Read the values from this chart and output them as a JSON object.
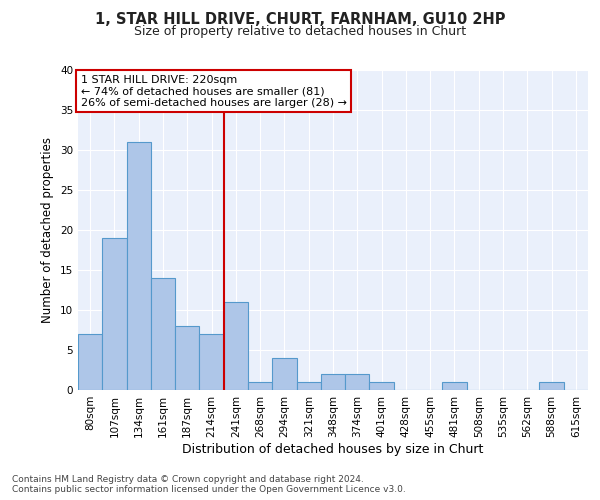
{
  "title": "1, STAR HILL DRIVE, CHURT, FARNHAM, GU10 2HP",
  "subtitle": "Size of property relative to detached houses in Churt",
  "xlabel": "Distribution of detached houses by size in Churt",
  "ylabel": "Number of detached properties",
  "categories": [
    "80sqm",
    "107sqm",
    "134sqm",
    "161sqm",
    "187sqm",
    "214sqm",
    "241sqm",
    "268sqm",
    "294sqm",
    "321sqm",
    "348sqm",
    "374sqm",
    "401sqm",
    "428sqm",
    "455sqm",
    "481sqm",
    "508sqm",
    "535sqm",
    "562sqm",
    "588sqm",
    "615sqm"
  ],
  "values": [
    7,
    19,
    31,
    14,
    8,
    7,
    11,
    1,
    4,
    1,
    2,
    2,
    1,
    0,
    0,
    1,
    0,
    0,
    0,
    1,
    0
  ],
  "bar_color": "#aec6e8",
  "bar_edge_color": "#5599cc",
  "highlight_line_index": 5,
  "highlight_line_color": "#cc0000",
  "ylim": [
    0,
    40
  ],
  "yticks": [
    0,
    5,
    10,
    15,
    20,
    25,
    30,
    35,
    40
  ],
  "annotation_title": "1 STAR HILL DRIVE: 220sqm",
  "annotation_line1": "← 74% of detached houses are smaller (81)",
  "annotation_line2": "26% of semi-detached houses are larger (28) →",
  "annotation_box_color": "#ffffff",
  "annotation_box_edge_color": "#cc0000",
  "footer_line1": "Contains HM Land Registry data © Crown copyright and database right 2024.",
  "footer_line2": "Contains public sector information licensed under the Open Government Licence v3.0.",
  "background_color": "#eaf0fb",
  "grid_color": "#ffffff",
  "fig_background": "#ffffff",
  "title_fontsize": 10.5,
  "subtitle_fontsize": 9,
  "ylabel_fontsize": 8.5,
  "xlabel_fontsize": 9,
  "tick_fontsize": 7.5,
  "annotation_fontsize": 8,
  "footer_fontsize": 6.5
}
